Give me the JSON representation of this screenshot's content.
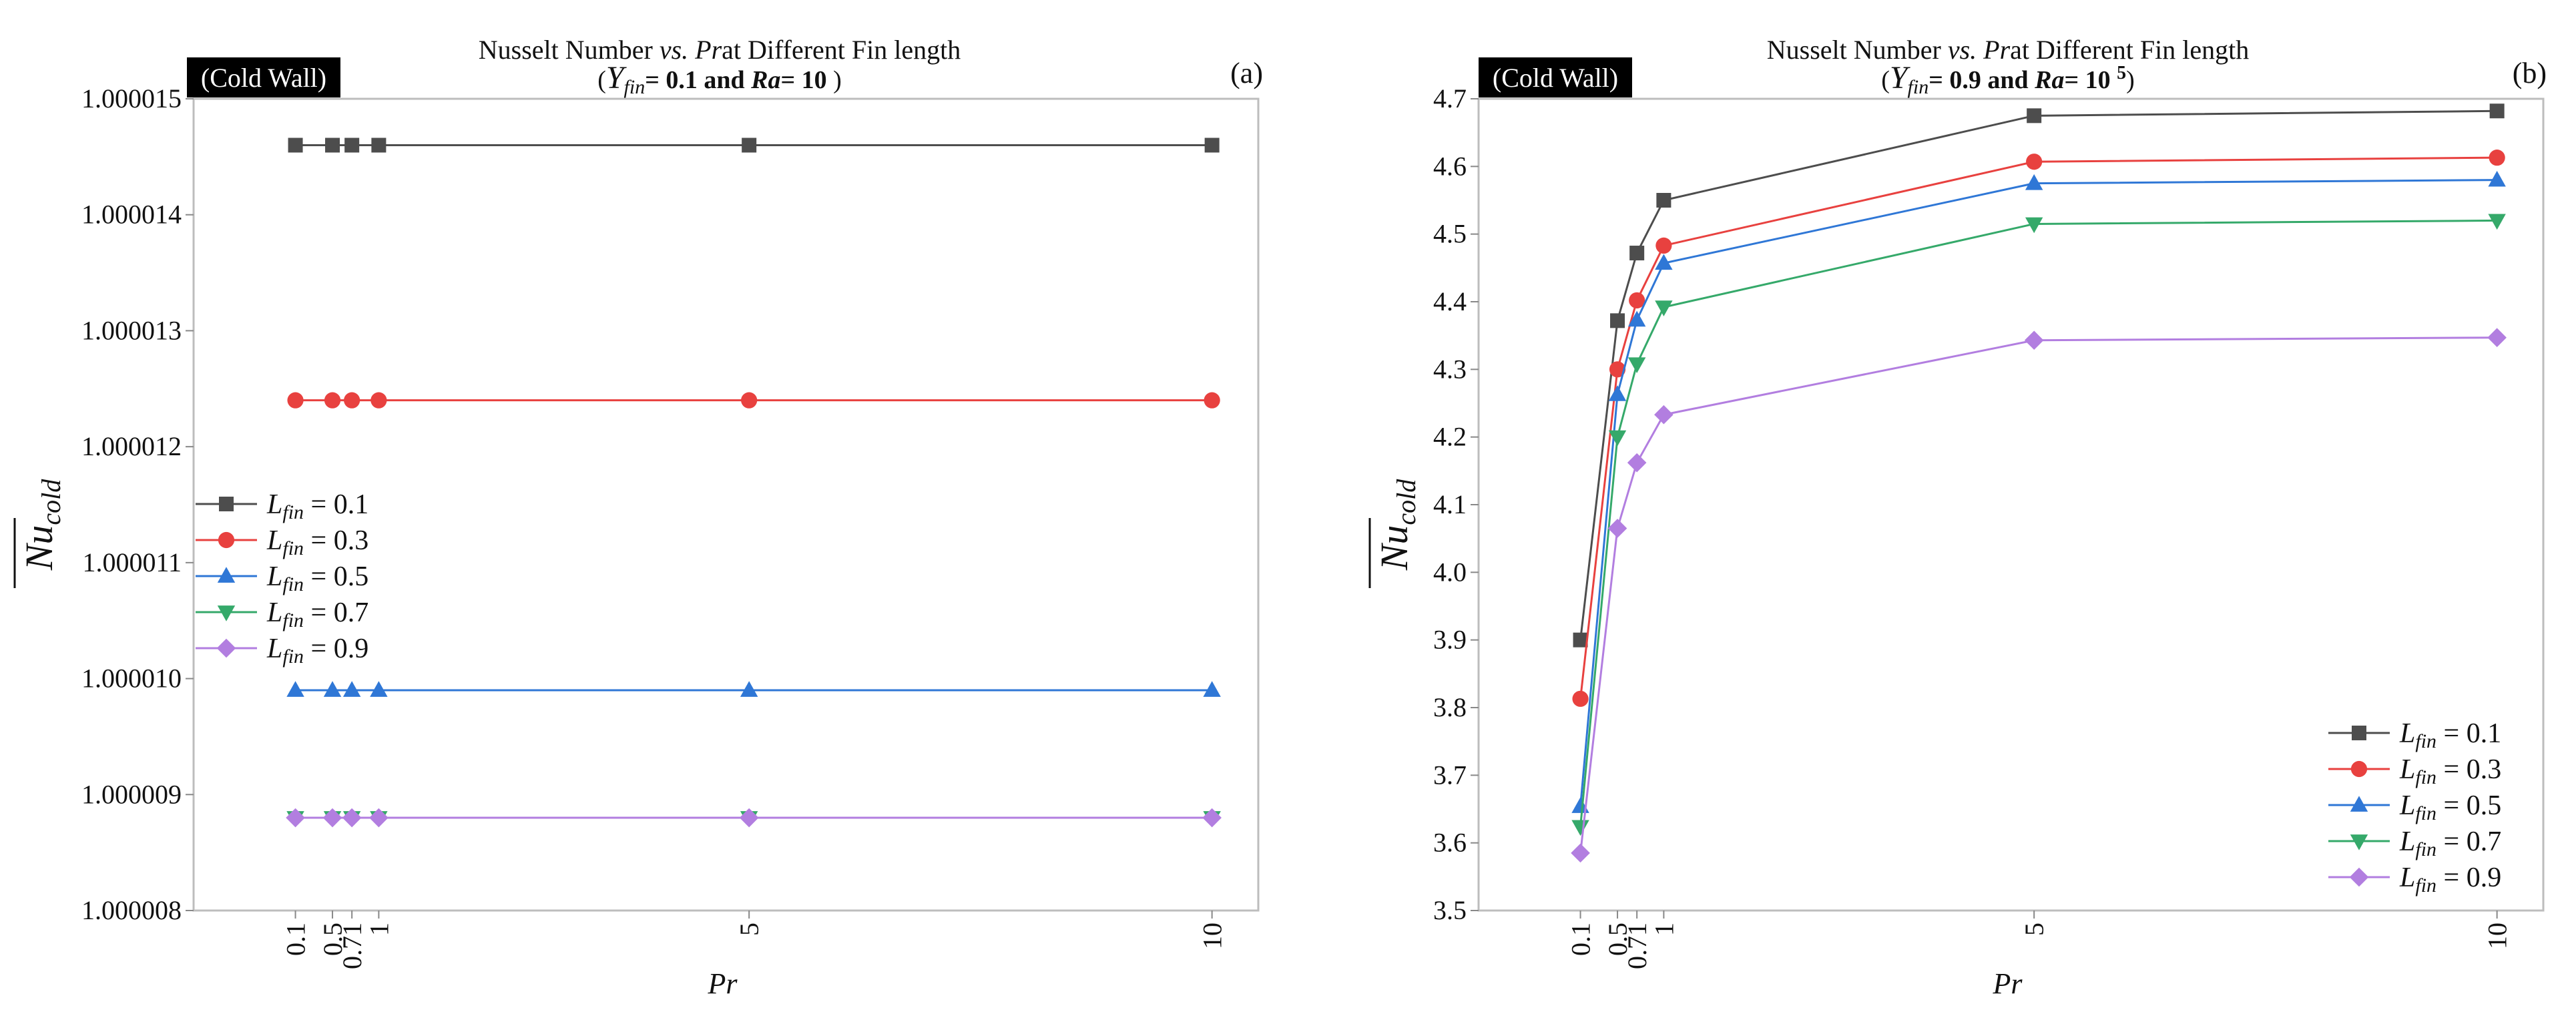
{
  "colors": {
    "series": [
      "#4d4d4d",
      "#e8413f",
      "#2f77d6",
      "#35a96a",
      "#b27ee0"
    ],
    "frame": "#bdbdbd",
    "badge": "#000000"
  },
  "chart_data": [
    {
      "type": "line",
      "panel_label": "(a)",
      "badge": "(Cold Wall)",
      "title_line1_pre": "Nusselt Number ",
      "title_line1_vs": "vs.",
      "title_line1_pr": "Pr",
      "title_line1_post": "at Different Fin length",
      "title_line2": {
        "open": "(",
        "y": "Y",
        "fin": "fin",
        "eq1": "= 0.1 and  ",
        "ra": "Ra",
        "eq2": "= 10",
        "exp": "",
        "close": " )"
      },
      "xlabel": "Pr",
      "ylabel": {
        "nu": "Nu",
        "sub": "cold"
      },
      "x": [
        0.1,
        0.5,
        0.71,
        1,
        5,
        10
      ],
      "xticks": [
        "0.1",
        "0.5",
        "0.71",
        "1",
        "5",
        "10"
      ],
      "xlim": [
        -1.0,
        10.5
      ],
      "ylim": [
        1.000008,
        1.000015
      ],
      "yticks": [
        "1.000008",
        "1.000009",
        "1.000010",
        "1.000011",
        "1.000012",
        "1.000013",
        "1.000014",
        "1.000015"
      ],
      "legend_position": "center-left",
      "series": [
        {
          "name": "L",
          "sub": "fin",
          "val": " = 0.1",
          "marker": "square",
          "values": [
            1.0000146,
            1.0000146,
            1.0000146,
            1.0000146,
            1.0000146,
            1.0000146
          ]
        },
        {
          "name": "L",
          "sub": "fin",
          "val": " = 0.3",
          "marker": "circle",
          "values": [
            1.0000124,
            1.0000124,
            1.0000124,
            1.0000124,
            1.0000124,
            1.0000124
          ]
        },
        {
          "name": "L",
          "sub": "fin",
          "val": " = 0.5",
          "marker": "triangle-up",
          "values": [
            1.0000099,
            1.0000099,
            1.0000099,
            1.0000099,
            1.0000099,
            1.0000099
          ]
        },
        {
          "name": "L",
          "sub": "fin",
          "val": " = 0.7",
          "marker": "triangle-down",
          "values": [
            1.0000088,
            1.0000088,
            1.0000088,
            1.0000088,
            1.0000088,
            1.0000088
          ]
        },
        {
          "name": "L",
          "sub": "fin",
          "val": " = 0.9",
          "marker": "diamond",
          "values": [
            1.0000088,
            1.0000088,
            1.0000088,
            1.0000088,
            1.0000088,
            1.0000088
          ]
        }
      ]
    },
    {
      "type": "line",
      "panel_label": "(b)",
      "badge": "(Cold Wall)",
      "title_line1_pre": "Nusselt Number ",
      "title_line1_vs": "vs.",
      "title_line1_pr": "Pr",
      "title_line1_post": "at Different Fin length",
      "title_line2": {
        "open": "(",
        "y": "Y",
        "fin": "fin",
        "eq1": "= 0.9 and  ",
        "ra": "Ra",
        "eq2": "= 10 ",
        "exp": "5",
        "close": ")"
      },
      "xlabel": "Pr",
      "ylabel": {
        "nu": "Nu",
        "sub": "cold"
      },
      "x": [
        0.1,
        0.5,
        0.71,
        1,
        5,
        10
      ],
      "xticks": [
        "0.1",
        "0.5",
        "0.71",
        "1",
        "5",
        "10"
      ],
      "xlim": [
        -1.0,
        10.5
      ],
      "ylim": [
        3.5,
        4.7
      ],
      "yticks": [
        "3.5",
        "3.6",
        "3.7",
        "3.8",
        "3.9",
        "4.0",
        "4.1",
        "4.2",
        "4.3",
        "4.4",
        "4.5",
        "4.6",
        "4.7"
      ],
      "legend_position": "bottom-right",
      "series": [
        {
          "name": "L",
          "sub": "fin",
          "val": " = 0.1",
          "marker": "square",
          "values": [
            3.9,
            4.372,
            4.472,
            4.55,
            4.675,
            4.682
          ]
        },
        {
          "name": "L",
          "sub": "fin",
          "val": " = 0.3",
          "marker": "circle",
          "values": [
            3.813,
            4.3,
            4.402,
            4.483,
            4.607,
            4.613
          ]
        },
        {
          "name": "L",
          "sub": "fin",
          "val": " = 0.5",
          "marker": "triangle-up",
          "values": [
            3.654,
            4.263,
            4.373,
            4.457,
            4.575,
            4.58
          ]
        },
        {
          "name": "L",
          "sub": "fin",
          "val": " = 0.7",
          "marker": "triangle-down",
          "values": [
            3.624,
            4.2,
            4.308,
            4.392,
            4.515,
            4.52
          ]
        },
        {
          "name": "L",
          "sub": "fin",
          "val": " = 0.9",
          "marker": "diamond",
          "values": [
            3.585,
            4.065,
            4.162,
            4.233,
            4.343,
            4.347
          ]
        }
      ]
    }
  ]
}
